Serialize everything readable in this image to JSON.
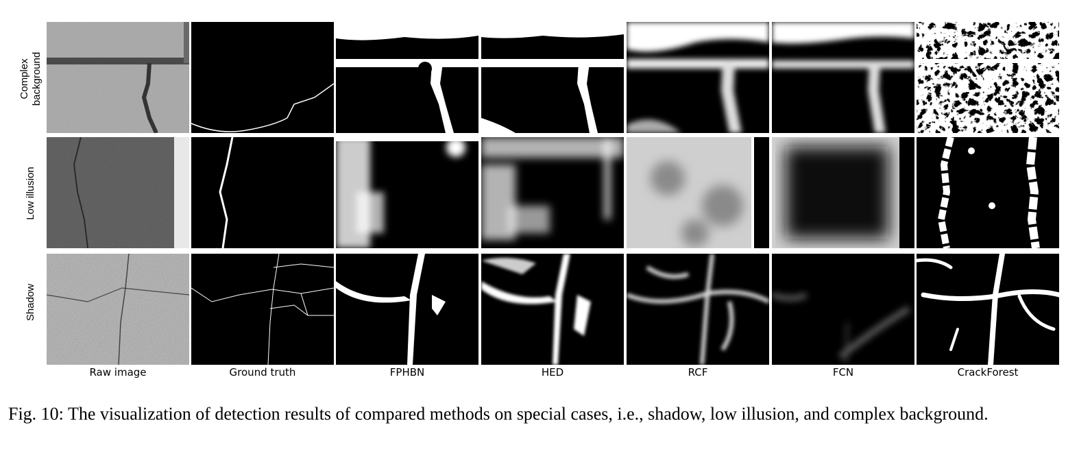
{
  "figure": {
    "row_labels": [
      "Complex\nbackground",
      "Low illusion",
      "Shadow"
    ],
    "column_labels": [
      "Raw image",
      "Ground truth",
      "FPHBN",
      "HED",
      "RCF",
      "FCN",
      "CrackForest"
    ],
    "caption": "Fig. 10: The visualization of detection results of compared methods on special cases, i.e., shadow, low illusion, and complex background."
  }
}
